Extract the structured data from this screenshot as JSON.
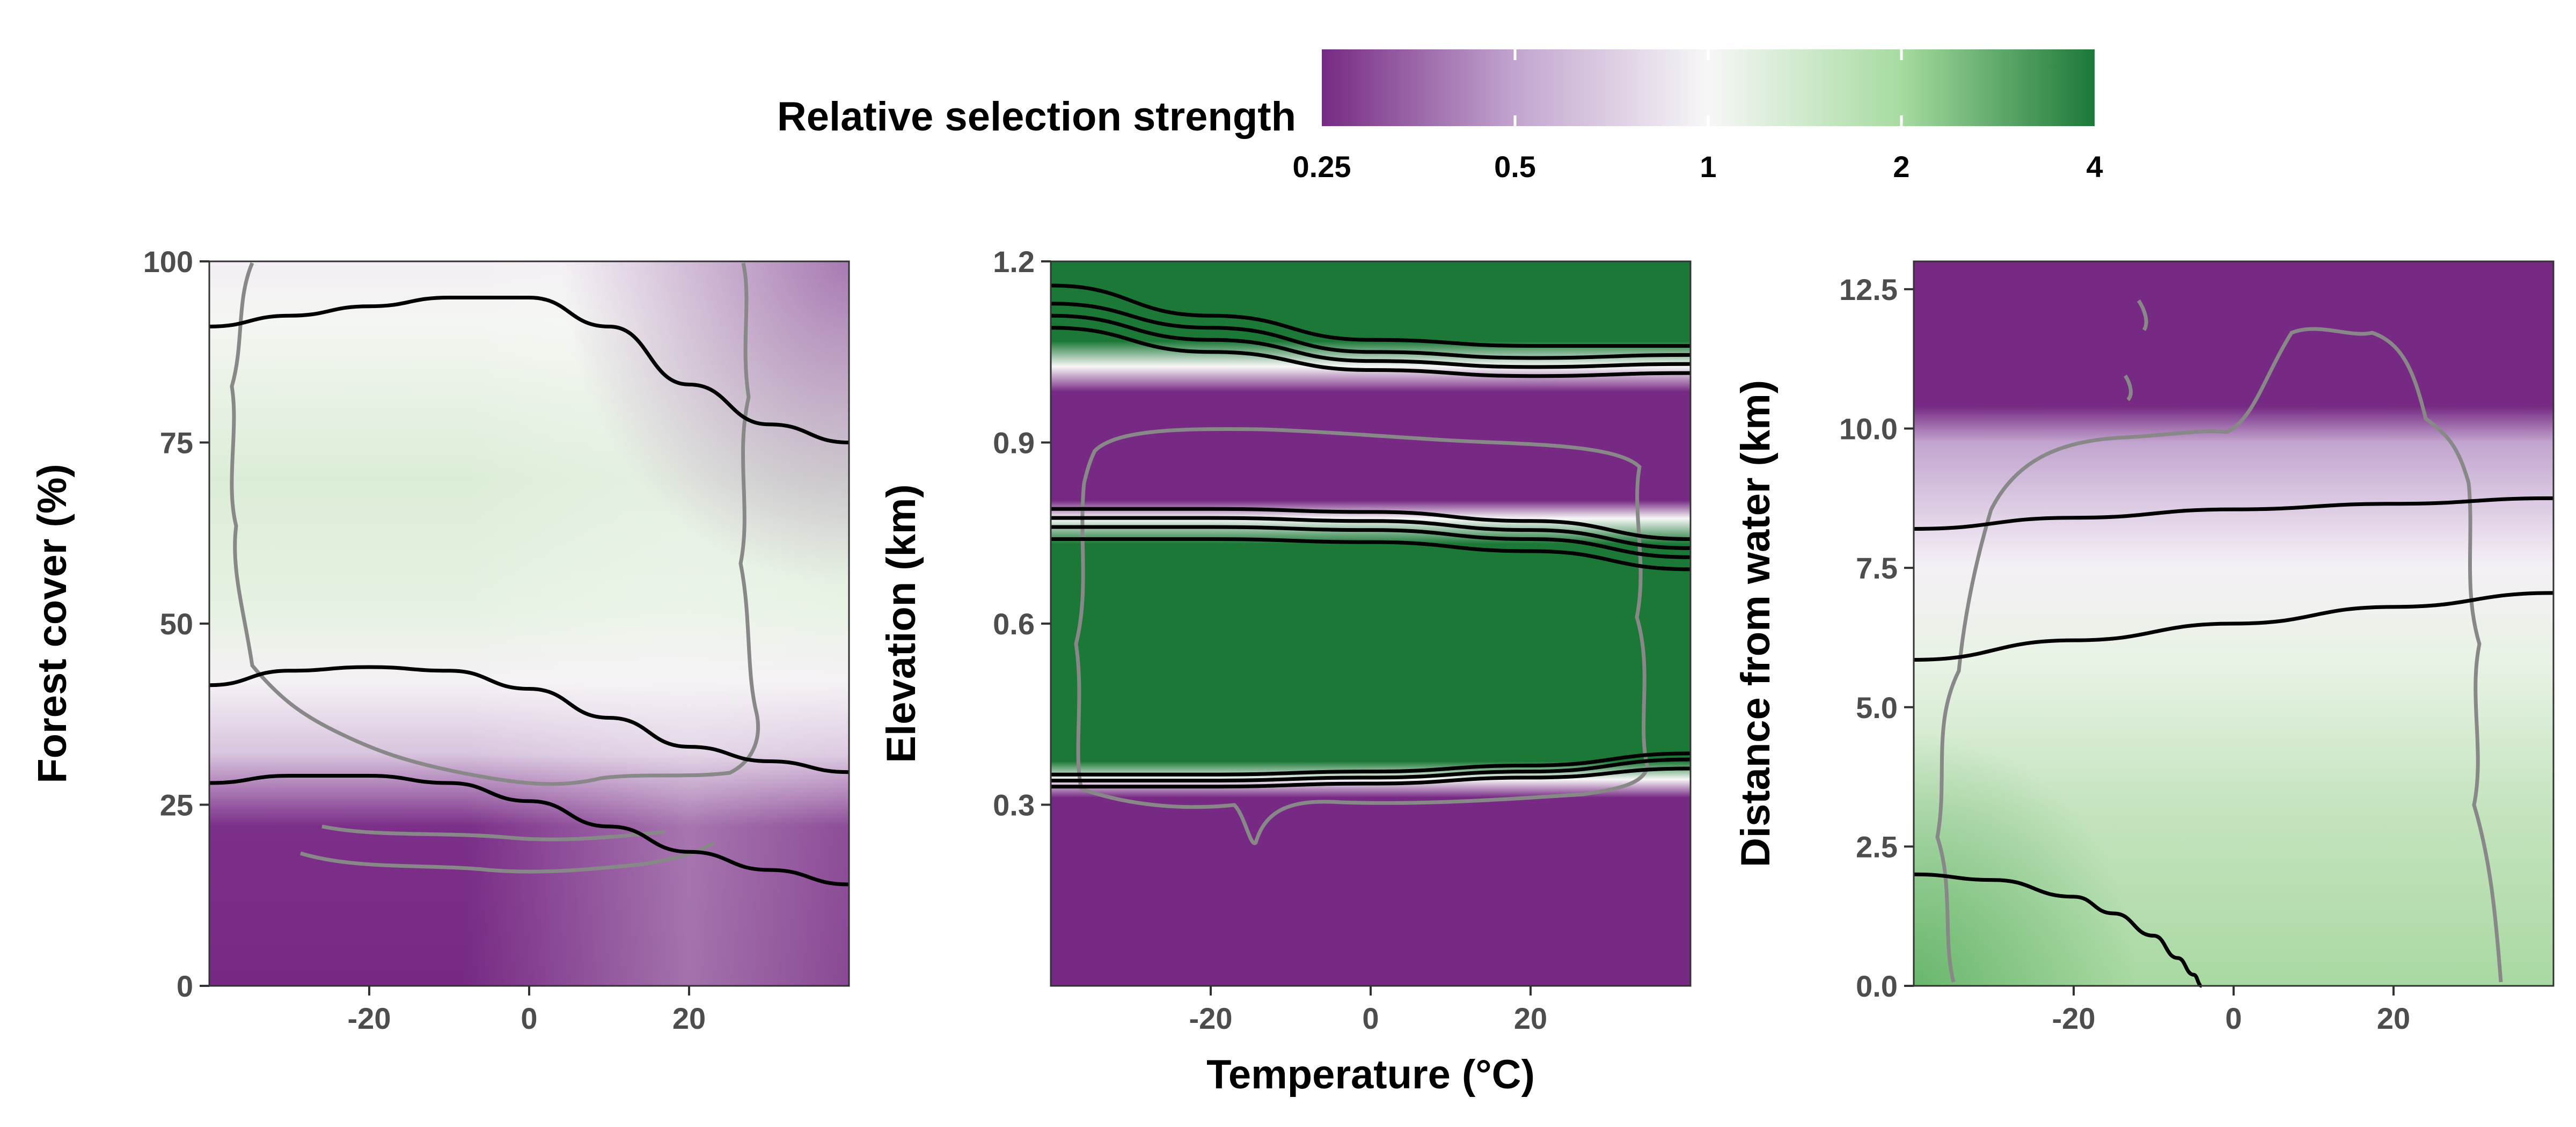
{
  "legend": {
    "title": "Relative selection strength",
    "ticks": [
      "0.25",
      "0.5",
      "1",
      "2",
      "4"
    ],
    "colors": {
      "low": "#762a83",
      "mid_low": "#c2a5cf",
      "mid": "#f7f7f7",
      "mid_high": "#a6dba0",
      "high": "#1b7837"
    }
  },
  "shared_xlabel": "Temperature (°C)",
  "chart_data": [
    {
      "type": "heatmap",
      "panel": "forest",
      "ylabel": "Forest cover (%)",
      "xlim": [
        -40,
        40
      ],
      "ylim": [
        0,
        100
      ],
      "xticks": [
        -20,
        0,
        20
      ],
      "xtick_labels": [
        "-20",
        "0",
        "20"
      ],
      "yticks": [
        0,
        25,
        50,
        75,
        100
      ],
      "ytick_labels": [
        "0",
        "25",
        "50",
        "75",
        "100"
      ],
      "contour_lines": [
        {
          "x": [
            -40,
            -30,
            -20,
            -10,
            0,
            10,
            20,
            30,
            40
          ],
          "y": [
            91,
            92.5,
            93.8,
            95,
            95,
            91,
            83,
            77.5,
            75
          ]
        },
        {
          "x": [
            -40,
            -30,
            -20,
            -10,
            0,
            10,
            20,
            30,
            40
          ],
          "y": [
            41.5,
            43.5,
            44,
            43.5,
            41,
            37,
            33,
            31,
            29.5
          ]
        },
        {
          "x": [
            -40,
            -30,
            -20,
            -10,
            0,
            10,
            20,
            30,
            40
          ],
          "y": [
            28,
            29,
            29,
            28,
            25.5,
            22,
            18.5,
            16,
            14
          ]
        }
      ]
    },
    {
      "type": "heatmap",
      "panel": "elevation",
      "ylabel": "Elevation (km)",
      "xlim": [
        -40,
        40
      ],
      "ylim": [
        0,
        1.2
      ],
      "xticks": [
        -20,
        0,
        20
      ],
      "xtick_labels": [
        "-20",
        "0",
        "20"
      ],
      "yticks": [
        0.3,
        0.6,
        0.9,
        1.2
      ],
      "ytick_labels": [
        "0.3",
        "0.6",
        "0.9",
        "1.2"
      ],
      "contour_lines": [
        {
          "x": [
            -40,
            -20,
            0,
            20,
            40
          ],
          "y": [
            1.16,
            1.11,
            1.07,
            1.06,
            1.06
          ]
        },
        {
          "x": [
            -40,
            -20,
            0,
            20,
            40
          ],
          "y": [
            1.13,
            1.09,
            1.05,
            1.04,
            1.045
          ]
        },
        {
          "x": [
            -40,
            -20,
            0,
            20,
            40
          ],
          "y": [
            1.11,
            1.07,
            1.035,
            1.025,
            1.03
          ]
        },
        {
          "x": [
            -40,
            -20,
            0,
            20,
            40
          ],
          "y": [
            1.09,
            1.05,
            1.02,
            1.01,
            1.015
          ]
        },
        {
          "x": [
            -40,
            -20,
            0,
            20,
            40
          ],
          "y": [
            0.79,
            0.79,
            0.785,
            0.77,
            0.74
          ]
        },
        {
          "x": [
            -40,
            -20,
            0,
            20,
            40
          ],
          "y": [
            0.775,
            0.775,
            0.77,
            0.755,
            0.725
          ]
        },
        {
          "x": [
            -40,
            -20,
            0,
            20,
            40
          ],
          "y": [
            0.76,
            0.76,
            0.755,
            0.74,
            0.71
          ]
        },
        {
          "x": [
            -40,
            -20,
            0,
            20,
            40
          ],
          "y": [
            0.74,
            0.74,
            0.735,
            0.72,
            0.69
          ]
        },
        {
          "x": [
            -40,
            -20,
            0,
            20,
            40
          ],
          "y": [
            0.35,
            0.35,
            0.355,
            0.365,
            0.385
          ]
        },
        {
          "x": [
            -40,
            -20,
            0,
            20,
            40
          ],
          "y": [
            0.34,
            0.34,
            0.345,
            0.355,
            0.375
          ]
        },
        {
          "x": [
            -40,
            -20,
            0,
            20,
            40
          ],
          "y": [
            0.33,
            0.33,
            0.335,
            0.345,
            0.36
          ]
        }
      ]
    },
    {
      "type": "heatmap",
      "panel": "water",
      "ylabel": "Distance from water (km)",
      "xlim": [
        -40,
        40
      ],
      "ylim": [
        0,
        13
      ],
      "xticks": [
        -20,
        0,
        20
      ],
      "xtick_labels": [
        "-20",
        "0",
        "20"
      ],
      "yticks": [
        0,
        2.5,
        5,
        7.5,
        10,
        12.5
      ],
      "ytick_labels": [
        "0.0",
        "2.5",
        "5.0",
        "7.5",
        "10.0",
        "12.5"
      ],
      "contour_lines": [
        {
          "x": [
            -40,
            -20,
            0,
            20,
            40
          ],
          "y": [
            8.2,
            8.4,
            8.55,
            8.65,
            8.75
          ]
        },
        {
          "x": [
            -40,
            -20,
            0,
            20,
            40
          ],
          "y": [
            5.85,
            6.2,
            6.5,
            6.8,
            7.05
          ]
        },
        {
          "x": [
            -40,
            -30,
            -20,
            -15,
            -10,
            -7,
            -5,
            -4
          ],
          "y": [
            2.0,
            1.9,
            1.6,
            1.3,
            0.9,
            0.5,
            0.2,
            0
          ]
        }
      ]
    }
  ]
}
